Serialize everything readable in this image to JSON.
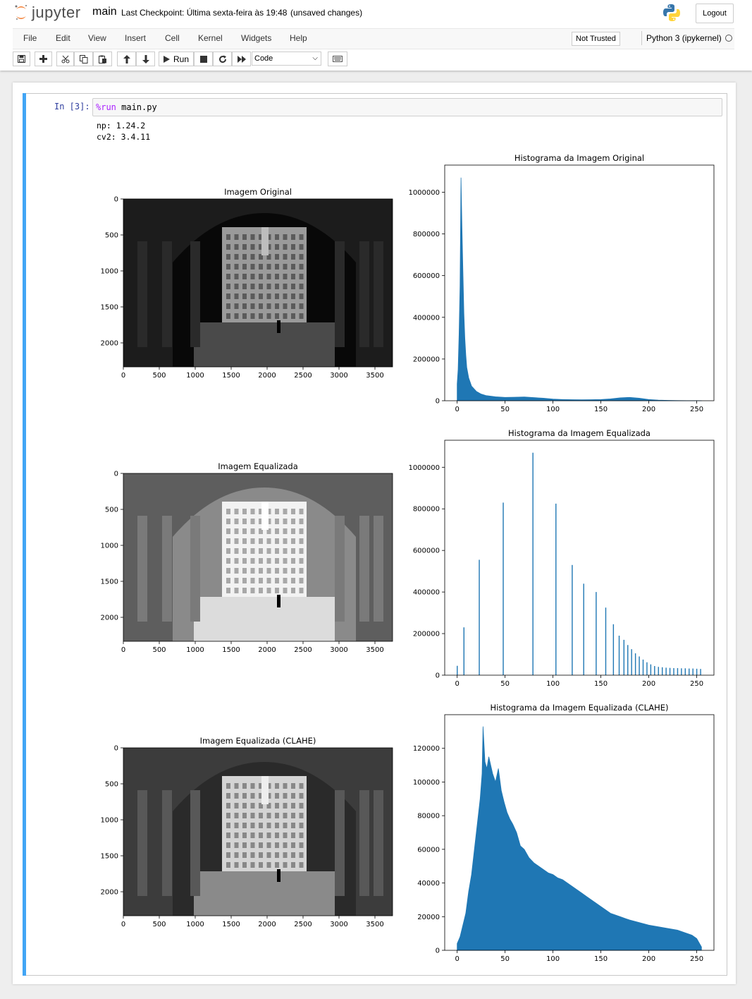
{
  "header": {
    "logo_text": "jupyter",
    "notebook_name": "main",
    "checkpoint": "Last Checkpoint: Última sexta-feira às 19:48",
    "autosave": "(unsaved changes)",
    "logout": "Logout"
  },
  "menu": {
    "items": [
      "File",
      "Edit",
      "View",
      "Insert",
      "Cell",
      "Kernel",
      "Widgets",
      "Help"
    ],
    "not_trusted": "Not Trusted",
    "kernel": "Python 3 (ipykernel)"
  },
  "toolbar": {
    "run_label": "Run",
    "cell_type": "Code",
    "icons": [
      "save-icon",
      "plus-icon",
      "cut-icon",
      "copy-icon",
      "paste-icon",
      "arrow-up-icon",
      "arrow-down-icon",
      "run-icon",
      "stop-icon",
      "restart-icon",
      "fast-forward-icon",
      "keyboard-icon"
    ]
  },
  "cell": {
    "prompt": "In [3]:",
    "code_magic": "%run",
    "code_rest": " main.py",
    "stdout": [
      "np: 1.24.2",
      "cv2: 3.4.11"
    ]
  },
  "chart_data": [
    {
      "type": "image",
      "title": "Imagem Original",
      "x_ticks": [
        "0",
        "500",
        "1000",
        "1500",
        "2000",
        "2500",
        "3000",
        "3500"
      ],
      "y_ticks": [
        "0",
        "500",
        "1000",
        "1500",
        "2000"
      ],
      "brightness": "dark"
    },
    {
      "type": "bar",
      "title": "Histograma da Imagem Original",
      "x_ticks": [
        "0",
        "50",
        "100",
        "150",
        "200",
        "250"
      ],
      "y_ticks": [
        "0",
        "200000",
        "400000",
        "600000",
        "800000",
        "1000000"
      ],
      "xlim": [
        -13,
        268
      ],
      "ylim": [
        0,
        1130000
      ],
      "color": "#1f77b4",
      "points": [
        [
          0,
          80000
        ],
        [
          1,
          150000
        ],
        [
          2,
          320000
        ],
        [
          3,
          550000
        ],
        [
          4,
          1070000
        ],
        [
          5,
          830000
        ],
        [
          6,
          620000
        ],
        [
          7,
          420000
        ],
        [
          8,
          300000
        ],
        [
          9,
          220000
        ],
        [
          10,
          160000
        ],
        [
          12,
          110000
        ],
        [
          15,
          70000
        ],
        [
          20,
          45000
        ],
        [
          25,
          32000
        ],
        [
          30,
          25000
        ],
        [
          40,
          19000
        ],
        [
          50,
          16000
        ],
        [
          60,
          17000
        ],
        [
          70,
          18000
        ],
        [
          80,
          15000
        ],
        [
          90,
          12000
        ],
        [
          100,
          8000
        ],
        [
          110,
          6000
        ],
        [
          120,
          5000
        ],
        [
          130,
          4500
        ],
        [
          140,
          5000
        ],
        [
          150,
          6000
        ],
        [
          160,
          9000
        ],
        [
          170,
          14000
        ],
        [
          180,
          16000
        ],
        [
          190,
          12000
        ],
        [
          200,
          6000
        ],
        [
          210,
          3000
        ],
        [
          220,
          1500
        ],
        [
          230,
          800
        ],
        [
          240,
          400
        ],
        [
          250,
          200
        ],
        [
          255,
          100
        ]
      ]
    },
    {
      "type": "image",
      "title": "Imagem Equalizada",
      "x_ticks": [
        "0",
        "500",
        "1000",
        "1500",
        "2000",
        "2500",
        "3000",
        "3500"
      ],
      "y_ticks": [
        "0",
        "500",
        "1000",
        "1500",
        "2000"
      ],
      "brightness": "bright"
    },
    {
      "type": "bar",
      "title": "Histograma da Imagem Equalizada",
      "x_ticks": [
        "0",
        "50",
        "100",
        "150",
        "200",
        "250"
      ],
      "y_ticks": [
        "0",
        "200000",
        "400000",
        "600000",
        "800000",
        "1000000"
      ],
      "xlim": [
        -13,
        268
      ],
      "ylim": [
        0,
        1130000
      ],
      "color": "#1f77b4",
      "points": [
        [
          0,
          45000
        ],
        [
          7,
          230000
        ],
        [
          23,
          555000
        ],
        [
          48,
          830000
        ],
        [
          79,
          1070000
        ],
        [
          103,
          825000
        ],
        [
          120,
          530000
        ],
        [
          132,
          440000
        ],
        [
          145,
          400000
        ],
        [
          155,
          325000
        ],
        [
          163,
          245000
        ],
        [
          169,
          190000
        ],
        [
          174,
          170000
        ],
        [
          178,
          145000
        ],
        [
          182,
          125000
        ],
        [
          186,
          105000
        ],
        [
          190,
          90000
        ],
        [
          194,
          75000
        ],
        [
          198,
          62000
        ],
        [
          202,
          52000
        ],
        [
          206,
          44000
        ],
        [
          210,
          40000
        ],
        [
          214,
          38000
        ],
        [
          218,
          36000
        ],
        [
          222,
          35000
        ],
        [
          226,
          34000
        ],
        [
          230,
          34000
        ],
        [
          234,
          33000
        ],
        [
          238,
          33000
        ],
        [
          242,
          32000
        ],
        [
          246,
          32000
        ],
        [
          250,
          31000
        ],
        [
          254,
          30000
        ]
      ]
    },
    {
      "type": "image",
      "title": "Imagem Equalizada (CLAHE)",
      "x_ticks": [
        "0",
        "500",
        "1000",
        "1500",
        "2000",
        "2500",
        "3000",
        "3500"
      ],
      "y_ticks": [
        "0",
        "500",
        "1000",
        "1500",
        "2000"
      ],
      "brightness": "medium"
    },
    {
      "type": "bar",
      "title": "Histograma da Imagem Equalizada (CLAHE)",
      "x_ticks": [
        "0",
        "50",
        "100",
        "150",
        "200",
        "250"
      ],
      "y_ticks": [
        "0",
        "20000",
        "40000",
        "60000",
        "80000",
        "100000",
        "120000"
      ],
      "xlim": [
        -13,
        268
      ],
      "ylim": [
        0,
        140000
      ],
      "color": "#1f77b4",
      "points": [
        [
          0,
          4000
        ],
        [
          3,
          8000
        ],
        [
          6,
          15000
        ],
        [
          9,
          22000
        ],
        [
          12,
          35000
        ],
        [
          15,
          45000
        ],
        [
          18,
          60000
        ],
        [
          21,
          75000
        ],
        [
          24,
          90000
        ],
        [
          26,
          105000
        ],
        [
          27,
          133000
        ],
        [
          29,
          112000
        ],
        [
          31,
          108000
        ],
        [
          33,
          115000
        ],
        [
          35,
          110000
        ],
        [
          37,
          105000
        ],
        [
          40,
          100000
        ],
        [
          43,
          108000
        ],
        [
          46,
          95000
        ],
        [
          49,
          88000
        ],
        [
          52,
          82000
        ],
        [
          55,
          78000
        ],
        [
          58,
          75000
        ],
        [
          62,
          70000
        ],
        [
          66,
          62000
        ],
        [
          70,
          60000
        ],
        [
          75,
          55000
        ],
        [
          80,
          52000
        ],
        [
          85,
          50000
        ],
        [
          90,
          48000
        ],
        [
          95,
          46000
        ],
        [
          100,
          45000
        ],
        [
          105,
          43000
        ],
        [
          110,
          42000
        ],
        [
          115,
          40000
        ],
        [
          120,
          38000
        ],
        [
          125,
          36000
        ],
        [
          130,
          34000
        ],
        [
          135,
          32000
        ],
        [
          140,
          30000
        ],
        [
          145,
          28000
        ],
        [
          150,
          26000
        ],
        [
          155,
          24000
        ],
        [
          160,
          22000
        ],
        [
          170,
          20000
        ],
        [
          180,
          18000
        ],
        [
          190,
          16500
        ],
        [
          200,
          15000
        ],
        [
          210,
          14000
        ],
        [
          220,
          13000
        ],
        [
          230,
          12000
        ],
        [
          240,
          10000
        ],
        [
          245,
          9000
        ],
        [
          250,
          7000
        ],
        [
          253,
          4000
        ],
        [
          255,
          2000
        ]
      ]
    }
  ]
}
